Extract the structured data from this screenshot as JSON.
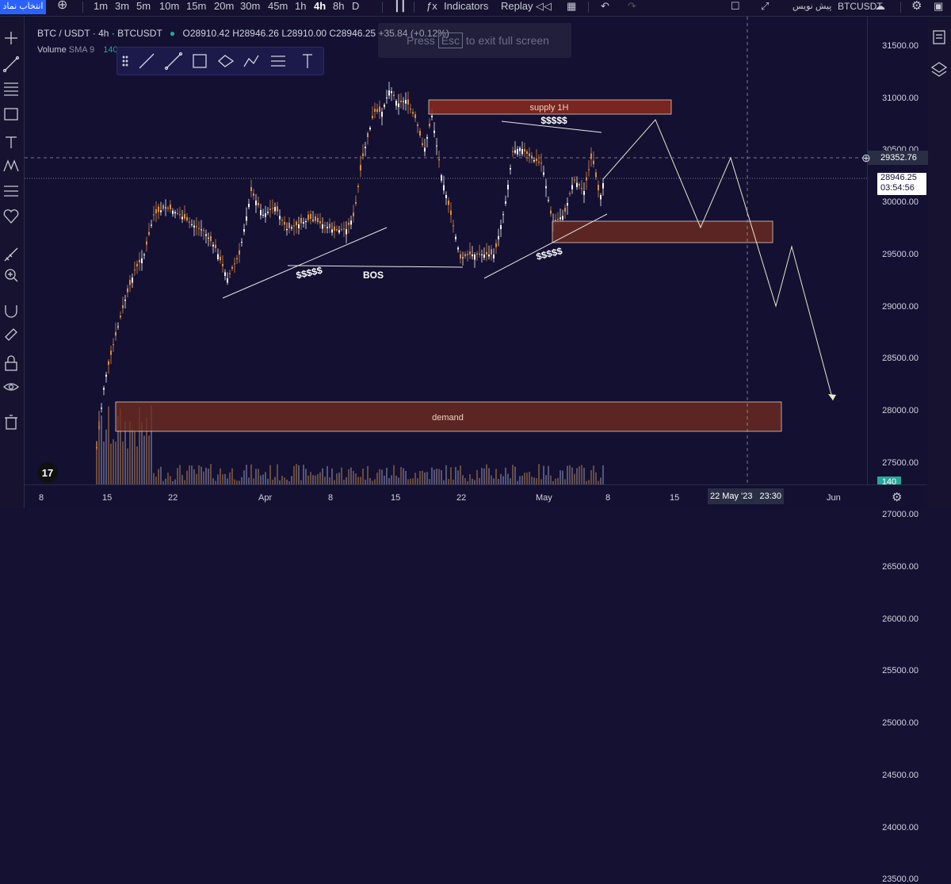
{
  "topbar": {
    "symbol_tab": "انتخاب نماد",
    "intervals": [
      "1m",
      "3m",
      "5m",
      "10m",
      "15m",
      "20m",
      "30m",
      "45m",
      "1h",
      "4h",
      "8h",
      "D"
    ],
    "active_interval": "4h",
    "indicators_label": "Indicators",
    "replay_label": "Replay",
    "symbol_right": "BTCUSDT",
    "publish_label": "پیش نویس"
  },
  "legend": {
    "pair": "BTC / USDT · 4h · BTCUSDT",
    "open": "O28910.42",
    "high": "H28946.26",
    "low": "L28910.00",
    "close": "C28946.25",
    "change": "+35.84 (+0.12%)",
    "volume_label": "Volume",
    "volume_sma": "SMA 9",
    "volume_value": "140"
  },
  "toast": {
    "press": "Press",
    "key": "Esc",
    "rest": "to exit full screen"
  },
  "annotations": {
    "supply": "supply 1H",
    "demand": "demand",
    "bos": "BOS",
    "liq1": "$$$$$",
    "liq2": "$$$$$",
    "liq3": "$$$$$"
  },
  "y_axis": {
    "ticks": [
      "31500.00",
      "31000.00",
      "30500.00",
      "30000.00",
      "29500.00",
      "29000.00",
      "28500.00",
      "28000.00",
      "27500.00",
      "27000.00",
      "26500.00",
      "26000.00",
      "25500.00",
      "25000.00",
      "24500.00",
      "24000.00",
      "23500.00"
    ],
    "crosshair_price": "29352.76",
    "last_price": "28946.25",
    "countdown": "03:54:56",
    "volume_tag": "140"
  },
  "x_axis": {
    "ticks": [
      "8",
      "15",
      "22",
      "Apr",
      "8",
      "15",
      "22",
      "May",
      "8",
      "15",
      "Jun"
    ],
    "crosshair_date": "22 May '23",
    "crosshair_time": "23:30"
  },
  "colors": {
    "up": "#f4f4f4",
    "down": "#e08a3c",
    "background": "#131032",
    "supply": "#8b2a1c",
    "demand": "#6e2a1f"
  }
}
